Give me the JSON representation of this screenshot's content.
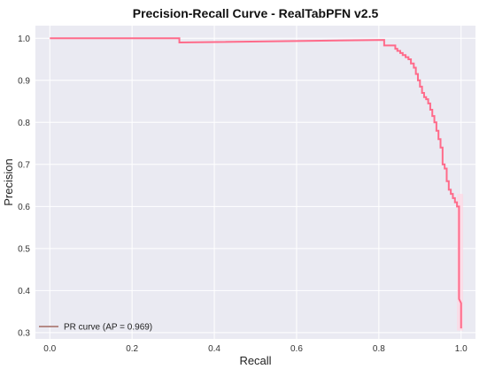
{
  "chart_data": {
    "type": "line",
    "title": "Precision-Recall Curve - RealTabPFN v2.5",
    "xlabel": "Recall",
    "ylabel": "Precision",
    "xlim": [
      -0.035,
      1.035
    ],
    "ylim": [
      0.285,
      1.03
    ],
    "x_ticks": [
      "0.0",
      "0.2",
      "0.4",
      "0.6",
      "0.8",
      "1.0"
    ],
    "y_ticks": [
      "0.3",
      "0.4",
      "0.5",
      "0.6",
      "0.7",
      "0.8",
      "0.9",
      "1.0"
    ],
    "grid": true,
    "legend_position": "lower-left",
    "colors": {
      "background": "#eaeaf2",
      "grid": "#ffffff",
      "curve": "#ff6b8a",
      "legend_swatch": "#b58a86",
      "band": "#ffd6e2"
    },
    "series": [
      {
        "name": "PR curve (AP = 0.969)",
        "x": [
          0.0,
          0.315,
          0.315,
          0.813,
          0.813,
          0.84,
          0.84,
          0.845,
          0.845,
          0.852,
          0.852,
          0.858,
          0.858,
          0.865,
          0.865,
          0.872,
          0.872,
          0.878,
          0.878,
          0.885,
          0.885,
          0.89,
          0.89,
          0.895,
          0.895,
          0.9,
          0.9,
          0.905,
          0.905,
          0.91,
          0.91,
          0.915,
          0.915,
          0.92,
          0.92,
          0.925,
          0.925,
          0.93,
          0.93,
          0.935,
          0.935,
          0.94,
          0.94,
          0.945,
          0.945,
          0.95,
          0.95,
          0.955,
          0.955,
          0.96,
          0.96,
          0.965,
          0.965,
          0.97,
          0.97,
          0.975,
          0.975,
          0.98,
          0.98,
          0.985,
          0.985,
          0.99,
          0.99,
          0.995,
          0.995,
          1.0,
          1.0
        ],
        "y": [
          1.0,
          1.0,
          0.99,
          0.996,
          0.983,
          0.983,
          0.975,
          0.975,
          0.97,
          0.97,
          0.965,
          0.965,
          0.96,
          0.96,
          0.955,
          0.955,
          0.95,
          0.95,
          0.94,
          0.94,
          0.93,
          0.93,
          0.915,
          0.915,
          0.9,
          0.9,
          0.885,
          0.885,
          0.87,
          0.87,
          0.86,
          0.86,
          0.855,
          0.855,
          0.845,
          0.845,
          0.83,
          0.83,
          0.815,
          0.815,
          0.8,
          0.8,
          0.78,
          0.78,
          0.76,
          0.76,
          0.74,
          0.74,
          0.7,
          0.7,
          0.69,
          0.69,
          0.66,
          0.66,
          0.64,
          0.64,
          0.63,
          0.63,
          0.62,
          0.62,
          0.61,
          0.61,
          0.6,
          0.6,
          0.38,
          0.37,
          0.31
        ]
      }
    ]
  }
}
